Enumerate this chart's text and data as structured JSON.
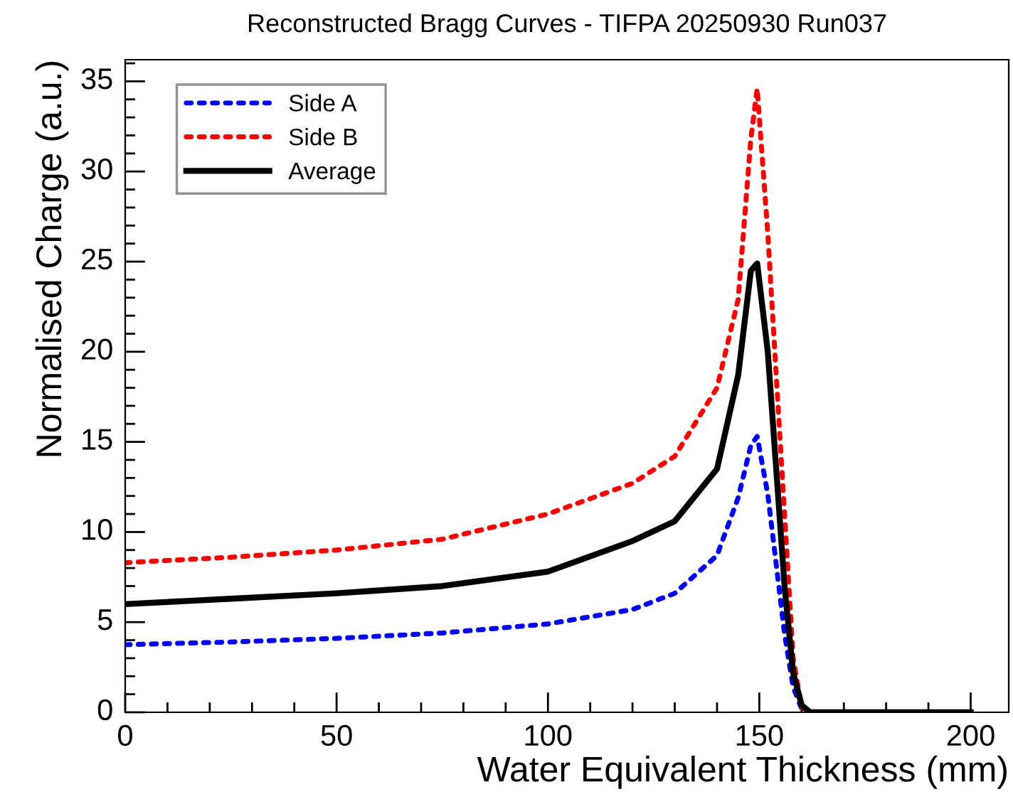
{
  "chart_data": {
    "type": "line",
    "title": "Reconstructed Bragg Curves - TIFPA 20250930 Run037",
    "xlabel": "Water Equivalent Thickness (mm)",
    "ylabel": "Normalised Charge (a.u.)",
    "x": [
      0,
      25,
      50,
      75,
      100,
      120,
      130,
      140,
      145,
      148,
      149.5,
      152,
      154,
      156,
      158,
      160,
      162,
      200
    ],
    "series": [
      {
        "name": "Side A",
        "color": "#0000ff",
        "line_style": "dotted",
        "values": [
          3.75,
          3.9,
          4.1,
          4.4,
          4.9,
          5.7,
          6.6,
          8.7,
          11.9,
          14.8,
          15.3,
          12.1,
          8.2,
          4.3,
          1.4,
          0.2,
          0,
          0
        ]
      },
      {
        "name": "Side B",
        "color": "#ff0000",
        "line_style": "dotted",
        "values": [
          8.3,
          8.6,
          9.0,
          9.6,
          11.0,
          12.7,
          14.2,
          18.0,
          22.9,
          31.8,
          34.6,
          26.6,
          18.7,
          10.9,
          3.0,
          0.3,
          0,
          0
        ]
      },
      {
        "name": "Average",
        "color": "#000000",
        "line_style": "solid",
        "values": [
          6.0,
          6.3,
          6.6,
          7.0,
          7.8,
          9.5,
          10.6,
          13.5,
          18.7,
          24.5,
          24.9,
          20.0,
          13.5,
          6.9,
          2.2,
          0.4,
          0,
          0
        ]
      }
    ],
    "xlim": [
      0,
      209
    ],
    "ylim": [
      0,
      36.2
    ],
    "xticks": [
      0,
      {
        "value": 10,
        "label": null
      },
      {
        "value": 20,
        "label": null
      },
      {
        "value": 30,
        "label": null
      },
      {
        "value": 40,
        "label": null
      },
      50,
      {
        "value": 60,
        "label": null
      },
      {
        "value": 70,
        "label": null
      },
      {
        "value": 80,
        "label": null
      },
      {
        "value": 90,
        "label": null
      },
      100,
      {
        "value": 110,
        "label": null
      },
      {
        "value": 120,
        "label": null
      },
      {
        "value": 130,
        "label": null
      },
      {
        "value": 140,
        "label": null
      },
      150,
      {
        "value": 160,
        "label": null
      },
      {
        "value": 170,
        "label": null
      },
      {
        "value": 180,
        "label": null
      },
      {
        "value": 190,
        "label": null
      },
      200
    ],
    "yticks": [
      0,
      {
        "value": 1,
        "label": null
      },
      {
        "value": 2,
        "label": null
      },
      {
        "value": 3,
        "label": null
      },
      {
        "value": 4,
        "label": null
      },
      5,
      {
        "value": 6,
        "label": null
      },
      {
        "value": 7,
        "label": null
      },
      {
        "value": 8,
        "label": null
      },
      {
        "value": 9,
        "label": null
      },
      10,
      {
        "value": 11,
        "label": null
      },
      {
        "value": 12,
        "label": null
      },
      {
        "value": 13,
        "label": null
      },
      {
        "value": 14,
        "label": null
      },
      15,
      {
        "value": 16,
        "label": null
      },
      {
        "value": 17,
        "label": null
      },
      {
        "value": 18,
        "label": null
      },
      {
        "value": 19,
        "label": null
      },
      20,
      {
        "value": 21,
        "label": null
      },
      {
        "value": 22,
        "label": null
      },
      {
        "value": 23,
        "label": null
      },
      {
        "value": 24,
        "label": null
      },
      25,
      {
        "value": 26,
        "label": null
      },
      {
        "value": 27,
        "label": null
      },
      {
        "value": 28,
        "label": null
      },
      {
        "value": 29,
        "label": null
      },
      30,
      {
        "value": 31,
        "label": null
      },
      {
        "value": 32,
        "label": null
      },
      {
        "value": 33,
        "label": null
      },
      {
        "value": 34,
        "label": null
      },
      35,
      {
        "value": 36,
        "label": null
      }
    ],
    "grid": false,
    "legend": "top left",
    "marker": "none"
  }
}
